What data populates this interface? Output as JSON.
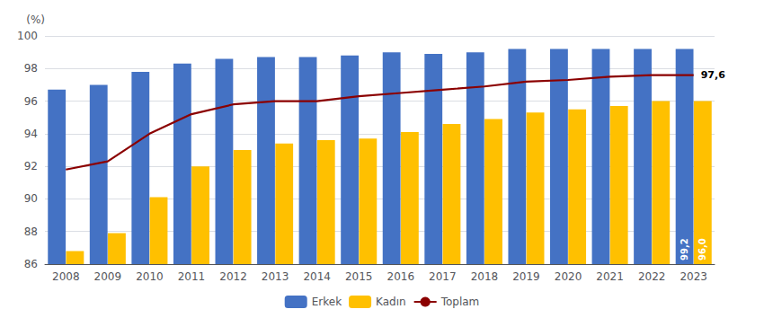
{
  "chart_data": {
    "type": "bar",
    "y_label": "(%)",
    "categories": [
      "2008",
      "2009",
      "2010",
      "2011",
      "2012",
      "2013",
      "2014",
      "2015",
      "2016",
      "2017",
      "2018",
      "2019",
      "2020",
      "2021",
      "2022",
      "2023"
    ],
    "series": [
      {
        "name": "Erkek",
        "type": "bar",
        "color": "#4472c4",
        "values": [
          96.7,
          97.0,
          97.8,
          98.3,
          98.6,
          98.7,
          98.7,
          98.8,
          99.0,
          98.9,
          99.0,
          99.2,
          99.2,
          99.2,
          99.2,
          99.2
        ],
        "value_labels": [
          null,
          null,
          null,
          null,
          null,
          null,
          null,
          null,
          null,
          null,
          null,
          null,
          null,
          null,
          null,
          "99,2"
        ]
      },
      {
        "name": "Kadın",
        "type": "bar",
        "color": "#ffc000",
        "values": [
          86.8,
          87.9,
          90.1,
          92.0,
          93.0,
          93.4,
          93.6,
          93.7,
          94.1,
          94.6,
          94.9,
          95.3,
          95.5,
          95.7,
          96.0,
          96.0
        ],
        "value_labels": [
          null,
          null,
          null,
          null,
          null,
          null,
          null,
          null,
          null,
          null,
          null,
          null,
          null,
          null,
          null,
          "96,0"
        ]
      },
      {
        "name": "Toplam",
        "type": "line",
        "color": "#8b0000",
        "values": [
          91.8,
          92.3,
          94.0,
          95.2,
          95.8,
          96.0,
          96.0,
          96.3,
          96.5,
          96.7,
          96.9,
          97.2,
          97.3,
          97.5,
          97.6,
          97.6
        ],
        "value_labels": [
          null,
          null,
          null,
          null,
          null,
          null,
          null,
          null,
          null,
          null,
          null,
          null,
          null,
          null,
          null,
          "97,6"
        ]
      }
    ],
    "ylim": [
      86,
      100
    ],
    "yticks": [
      86,
      88,
      90,
      92,
      94,
      96,
      98,
      100
    ],
    "grid": true,
    "legend": "bottom"
  }
}
